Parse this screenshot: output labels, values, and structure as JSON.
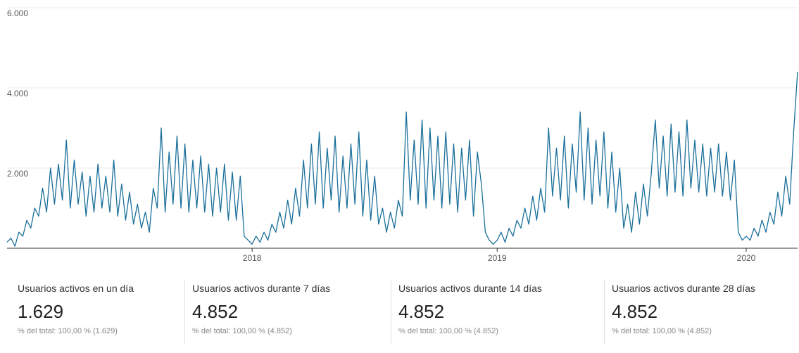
{
  "chart_data": {
    "type": "line",
    "color": "#1a6f9a",
    "grid": true,
    "ylim": [
      0,
      6000
    ],
    "yticks": [
      {
        "value": 2000,
        "label": "2.000"
      },
      {
        "value": 4000,
        "label": "4.000"
      },
      {
        "value": 6000,
        "label": "6.000"
      }
    ],
    "xlim": [
      0,
      200
    ],
    "xticks": [
      {
        "value": 62,
        "label": "2018"
      },
      {
        "value": 124,
        "label": "2019"
      },
      {
        "value": 187,
        "label": "2020"
      }
    ],
    "values": [
      150,
      250,
      50,
      400,
      300,
      700,
      500,
      1000,
      800,
      1500,
      900,
      2000,
      1100,
      2100,
      1200,
      2700,
      1000,
      2200,
      1100,
      1900,
      800,
      1800,
      900,
      2100,
      1000,
      1800,
      900,
      2200,
      800,
      1600,
      700,
      1400,
      600,
      1100,
      500,
      900,
      400,
      1500,
      1000,
      3000,
      900,
      2400,
      1100,
      2800,
      1000,
      2600,
      900,
      2200,
      1000,
      2300,
      900,
      2100,
      800,
      2000,
      900,
      2100,
      700,
      1900,
      700,
      1800,
      300,
      200,
      100,
      300,
      150,
      400,
      200,
      600,
      400,
      900,
      500,
      1200,
      600,
      1500,
      800,
      2200,
      1000,
      2600,
      1100,
      2900,
      1000,
      2500,
      1200,
      2800,
      900,
      2300,
      1000,
      2600,
      1100,
      2900,
      800,
      2200,
      700,
      1800,
      600,
      1000,
      400,
      900,
      500,
      1200,
      800,
      3400,
      1200,
      2700,
      1100,
      3200,
      1000,
      3000,
      1200,
      2800,
      1000,
      2900,
      1100,
      2600,
      900,
      2500,
      1200,
      2700,
      800,
      2400,
      1600,
      400,
      200,
      100,
      200,
      400,
      150,
      500,
      300,
      700,
      500,
      1000,
      600,
      1300,
      700,
      1500,
      900,
      3000,
      1300,
      2500,
      1200,
      2800,
      1000,
      2600,
      1400,
      3400,
      1200,
      3000,
      1100,
      2700,
      1300,
      2900,
      1000,
      2400,
      900,
      2000,
      500,
      1100,
      400,
      1400,
      600,
      1600,
      800,
      1900,
      3200,
      1500,
      2800,
      1300,
      3100,
      1400,
      2900,
      1300,
      3200,
      1500,
      2700,
      1400,
      2600,
      1300,
      2500,
      1400,
      2600,
      1300,
      2400,
      1200,
      2200,
      400,
      200,
      300,
      200,
      500,
      300,
      700,
      400,
      900,
      600,
      1400,
      800,
      1800,
      1100,
      2900,
      4400
    ]
  },
  "metrics": [
    {
      "label": "Usuarios activos en un día",
      "value": "1.629",
      "note": "% del total: 100,00 % (1.629)"
    },
    {
      "label": "Usuarios activos durante 7 días",
      "value": "4.852",
      "note": "% del total: 100,00 % (4.852)"
    },
    {
      "label": "Usuarios activos durante 14 días",
      "value": "4.852",
      "note": "% del total: 100,00 % (4.852)"
    },
    {
      "label": "Usuarios activos durante 28 días",
      "value": "4.852",
      "note": "% del total: 100,00 % (4.852)"
    }
  ]
}
